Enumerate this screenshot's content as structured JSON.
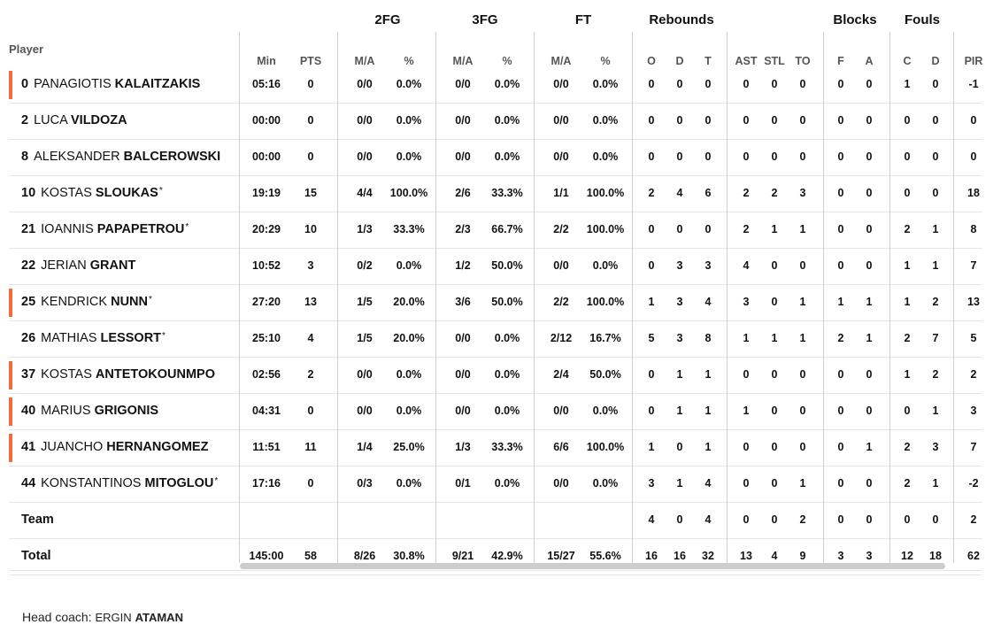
{
  "groups": {
    "fg2": "2FG",
    "fg3": "3FG",
    "ft": "FT",
    "rebounds": "Rebounds",
    "blocks": "Blocks",
    "fouls": "Fouls"
  },
  "player_header": "Player",
  "columns": {
    "min": "Min",
    "pts": "PTS",
    "fg2_ma": "M/A",
    "fg2_pct": "%",
    "fg3_ma": "M/A",
    "fg3_pct": "%",
    "ft_ma": "M/A",
    "ft_pct": "%",
    "reb_o": "O",
    "reb_d": "D",
    "reb_t": "T",
    "ast": "AST",
    "stl": "STL",
    "to": "TO",
    "blk_f": "F",
    "blk_a": "A",
    "foul_c": "C",
    "foul_d": "D",
    "pir": "PIR"
  },
  "players": [
    {
      "num": "0",
      "first": "PANAGIOTIS",
      "last": "KALAITZAKIS",
      "star": "",
      "marker": true,
      "stats": [
        "05:16",
        "0",
        "0/0",
        "0.0%",
        "0/0",
        "0.0%",
        "0/0",
        "0.0%",
        "0",
        "0",
        "0",
        "0",
        "0",
        "0",
        "0",
        "0",
        "1",
        "0",
        "-1"
      ]
    },
    {
      "num": "2",
      "first": "LUCA",
      "last": "VILDOZA",
      "star": "",
      "marker": false,
      "stats": [
        "00:00",
        "0",
        "0/0",
        "0.0%",
        "0/0",
        "0.0%",
        "0/0",
        "0.0%",
        "0",
        "0",
        "0",
        "0",
        "0",
        "0",
        "0",
        "0",
        "0",
        "0",
        "0"
      ]
    },
    {
      "num": "8",
      "first": "ALEKSANDER",
      "last": "BALCEROWSKI",
      "star": "",
      "marker": false,
      "stats": [
        "00:00",
        "0",
        "0/0",
        "0.0%",
        "0/0",
        "0.0%",
        "0/0",
        "0.0%",
        "0",
        "0",
        "0",
        "0",
        "0",
        "0",
        "0",
        "0",
        "0",
        "0",
        "0"
      ]
    },
    {
      "num": "10",
      "first": "KOSTAS",
      "last": "SLOUKAS",
      "star": "*",
      "marker": false,
      "stats": [
        "19:19",
        "15",
        "4/4",
        "100.0%",
        "2/6",
        "33.3%",
        "1/1",
        "100.0%",
        "2",
        "4",
        "6",
        "2",
        "2",
        "3",
        "0",
        "0",
        "0",
        "0",
        "18"
      ]
    },
    {
      "num": "21",
      "first": "IOANNIS",
      "last": "PAPAPETROU",
      "star": "*",
      "marker": false,
      "stats": [
        "20:29",
        "10",
        "1/3",
        "33.3%",
        "2/3",
        "66.7%",
        "2/2",
        "100.0%",
        "0",
        "0",
        "0",
        "2",
        "1",
        "1",
        "0",
        "0",
        "2",
        "1",
        "8"
      ]
    },
    {
      "num": "22",
      "first": "JERIAN",
      "last": "GRANT",
      "star": "",
      "marker": false,
      "stats": [
        "10:52",
        "3",
        "0/2",
        "0.0%",
        "1/2",
        "50.0%",
        "0/0",
        "0.0%",
        "0",
        "3",
        "3",
        "4",
        "0",
        "0",
        "0",
        "0",
        "1",
        "1",
        "7"
      ]
    },
    {
      "num": "25",
      "first": "KENDRICK",
      "last": "NUNN",
      "star": "*",
      "marker": true,
      "stats": [
        "27:20",
        "13",
        "1/5",
        "20.0%",
        "3/6",
        "50.0%",
        "2/2",
        "100.0%",
        "1",
        "3",
        "4",
        "3",
        "0",
        "1",
        "1",
        "1",
        "1",
        "2",
        "13"
      ]
    },
    {
      "num": "26",
      "first": "MATHIAS",
      "last": "LESSORT",
      "star": "*",
      "marker": false,
      "stats": [
        "25:10",
        "4",
        "1/5",
        "20.0%",
        "0/0",
        "0.0%",
        "2/12",
        "16.7%",
        "5",
        "3",
        "8",
        "1",
        "1",
        "1",
        "2",
        "1",
        "2",
        "7",
        "5"
      ]
    },
    {
      "num": "37",
      "first": "KOSTAS",
      "last": "ANTETOKOUNMPO",
      "star": "",
      "marker": true,
      "stats": [
        "02:56",
        "2",
        "0/0",
        "0.0%",
        "0/0",
        "0.0%",
        "2/4",
        "50.0%",
        "0",
        "1",
        "1",
        "0",
        "0",
        "0",
        "0",
        "0",
        "1",
        "2",
        "2"
      ]
    },
    {
      "num": "40",
      "first": "MARIUS",
      "last": "GRIGONIS",
      "star": "",
      "marker": true,
      "stats": [
        "04:31",
        "0",
        "0/0",
        "0.0%",
        "0/0",
        "0.0%",
        "0/0",
        "0.0%",
        "0",
        "1",
        "1",
        "1",
        "0",
        "0",
        "0",
        "0",
        "0",
        "1",
        "3"
      ]
    },
    {
      "num": "41",
      "first": "JUANCHO",
      "last": "HERNANGOMEZ",
      "star": "",
      "marker": true,
      "stats": [
        "11:51",
        "11",
        "1/4",
        "25.0%",
        "1/3",
        "33.3%",
        "6/6",
        "100.0%",
        "1",
        "0",
        "1",
        "0",
        "0",
        "0",
        "0",
        "1",
        "2",
        "3",
        "7"
      ]
    },
    {
      "num": "44",
      "first": "KONSTANTINOS",
      "last": "MITOGLOU",
      "star": "*",
      "marker": false,
      "stats": [
        "17:16",
        "0",
        "0/3",
        "0.0%",
        "0/1",
        "0.0%",
        "0/0",
        "0.0%",
        "3",
        "1",
        "4",
        "0",
        "0",
        "1",
        "0",
        "0",
        "2",
        "1",
        "-2"
      ]
    }
  ],
  "team": {
    "label": "Team",
    "stats": [
      "",
      "",
      "",
      "",
      "",
      "",
      "",
      "",
      "4",
      "0",
      "4",
      "0",
      "0",
      "2",
      "0",
      "0",
      "0",
      "0",
      "2"
    ]
  },
  "total": {
    "label": "Total",
    "stats": [
      "145:00",
      "58",
      "8/26",
      "30.8%",
      "9/21",
      "42.9%",
      "15/27",
      "55.6%",
      "16",
      "16",
      "32",
      "13",
      "4",
      "9",
      "3",
      "3",
      "12",
      "18",
      "62"
    ]
  },
  "coach": {
    "prefix": "Head coach:",
    "first": "ERGIN",
    "last": "ATAMAN"
  }
}
